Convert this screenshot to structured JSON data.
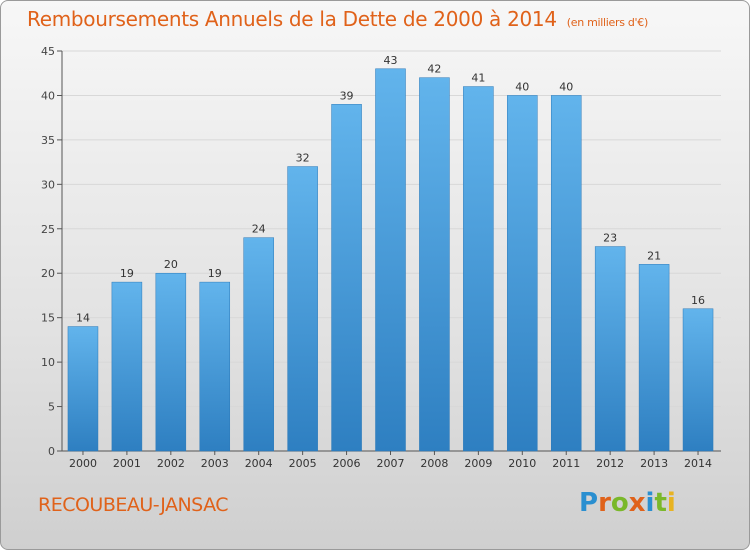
{
  "chart_data": {
    "type": "bar",
    "title": "Remboursements Annuels de la Dette de 2000 à 2014",
    "subtitle": "(en milliers d'€)",
    "categories": [
      "2000",
      "2001",
      "2002",
      "2003",
      "2004",
      "2005",
      "2006",
      "2007",
      "2008",
      "2009",
      "2010",
      "2011",
      "2012",
      "2013",
      "2014"
    ],
    "values": [
      14,
      19,
      20,
      19,
      24,
      32,
      39,
      43,
      42,
      41,
      40,
      40,
      23,
      21,
      16
    ],
    "ylim": [
      0,
      45
    ],
    "yticks": [
      0,
      5,
      10,
      15,
      20,
      25,
      30,
      35,
      40,
      45
    ],
    "grid": true,
    "colors": {
      "bar_light": "#62b4ec",
      "bar_dark": "#2e7fc1",
      "grid": "#d8d8d8",
      "axis": "#555555"
    }
  },
  "footer": {
    "commune": "RECOUBEAU-JANSAC",
    "logo_letters": [
      {
        "ch": "P",
        "color": "#2a8fd0"
      },
      {
        "ch": "r",
        "color": "#e0621a"
      },
      {
        "ch": "o",
        "color": "#7ab82a"
      },
      {
        "ch": "x",
        "color": "#e0621a"
      },
      {
        "ch": "i",
        "color": "#2a8fd0"
      },
      {
        "ch": "t",
        "color": "#7ab82a"
      },
      {
        "ch": "i",
        "color": "#e8b322"
      }
    ]
  }
}
